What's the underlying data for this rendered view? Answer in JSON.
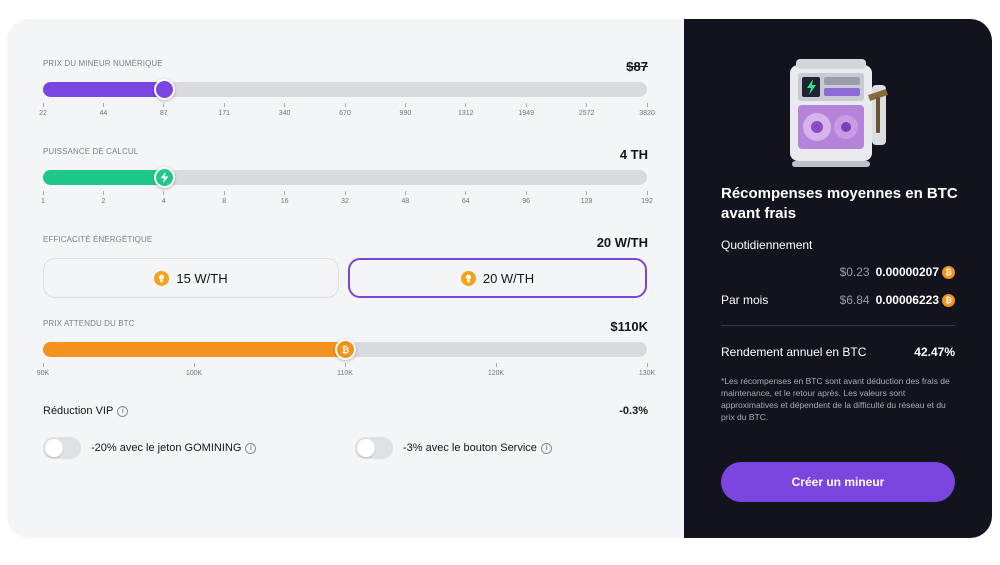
{
  "sliders": {
    "price": {
      "label": "PRIX DU MINEUR NUMÉRIQUE",
      "value_display": "$87",
      "ticks": [
        "22",
        "44",
        "87",
        "171",
        "340",
        "670",
        "990",
        "1312",
        "1949",
        "2572",
        "3820"
      ],
      "selected_index": 2,
      "fill_color": "#7b45e0"
    },
    "power": {
      "label": "PUISSANCE DE CALCUL",
      "value_display": "4 TH",
      "ticks": [
        "1",
        "2",
        "4",
        "8",
        "16",
        "32",
        "48",
        "64",
        "96",
        "128",
        "192"
      ],
      "selected_index": 2,
      "fill_color": "#1fc88a"
    },
    "btc_price": {
      "label": "PRIX ATTENDU DU BTC",
      "value_display": "$110K",
      "ticks": [
        "90K",
        "100K",
        "110K",
        "120K",
        "130K"
      ],
      "selected_index": 2,
      "fill_color": "#f4921d"
    }
  },
  "efficiency": {
    "label": "EFFICACITÉ ÉNERGÉTIQUE",
    "value_display": "20 W/TH",
    "options": [
      "15 W/TH",
      "20 W/TH"
    ],
    "selected": "20 W/TH"
  },
  "vip": {
    "title": "Réduction VIP",
    "value": "-0.3%",
    "toggles": [
      {
        "label": "-20% avec le jeton GOMINING",
        "on": false
      },
      {
        "label": "-3% avec le bouton Service",
        "on": false
      }
    ]
  },
  "rewards": {
    "title": "Récompenses moyennes en BTC avant frais",
    "daily_label": "Quotidiennement",
    "daily_usd": "$0.23",
    "daily_btc": "0.00000207",
    "monthly_label": "Par mois",
    "monthly_usd": "$6.84",
    "monthly_btc": "0.00006223",
    "apy_label": "Rendement annuel en BTC",
    "apy_value": "42.47%",
    "note": "*Les récompenses en BTC sont avant déduction des frais de maintenance, et le retour après. Les valeurs sont approximatives et dépendent de la difficulté du réseau et du prix du BTC.",
    "cta": "Créer un mineur",
    "accent": "#7b45e0"
  }
}
